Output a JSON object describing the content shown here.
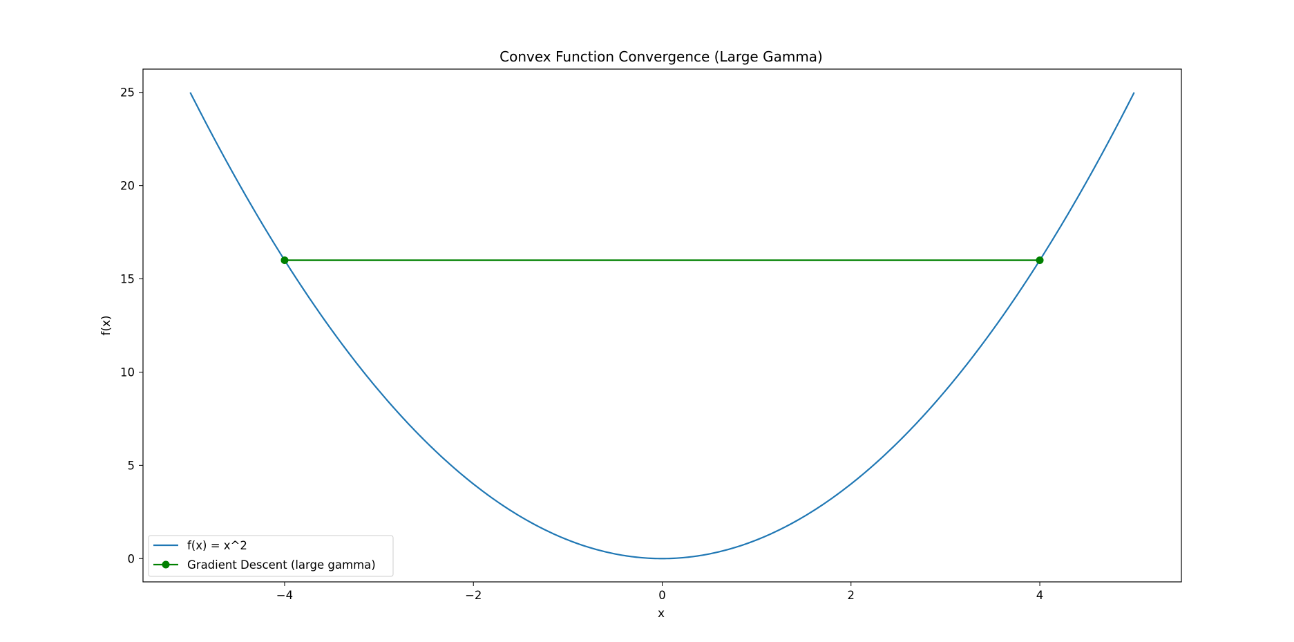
{
  "chart_data": {
    "type": "line",
    "title": "Convex Function Convergence (Large Gamma)",
    "xlabel": "x",
    "ylabel": "f(x)",
    "xlim": [
      -5.5,
      5.5
    ],
    "ylim": [
      -1.25,
      26.25
    ],
    "xticks": [
      -4,
      -2,
      0,
      2,
      4
    ],
    "xtick_labels": [
      "−4",
      "−2",
      "0",
      "2",
      "4"
    ],
    "yticks": [
      0,
      5,
      10,
      15,
      20,
      25
    ],
    "ytick_labels": [
      "0",
      "5",
      "10",
      "15",
      "20",
      "25"
    ],
    "grid": false,
    "legend_position": "lower-left",
    "series": [
      {
        "name": "f(x) = x^2",
        "kind": "function",
        "expression": "x^2",
        "x_range": [
          -5,
          5
        ],
        "color": "#1f77b4",
        "marker": "none"
      },
      {
        "name": "Gradient Descent (large gamma)",
        "kind": "points",
        "x": [
          -4,
          4
        ],
        "y": [
          16,
          16
        ],
        "color": "#008000",
        "marker": "circle"
      }
    ]
  }
}
